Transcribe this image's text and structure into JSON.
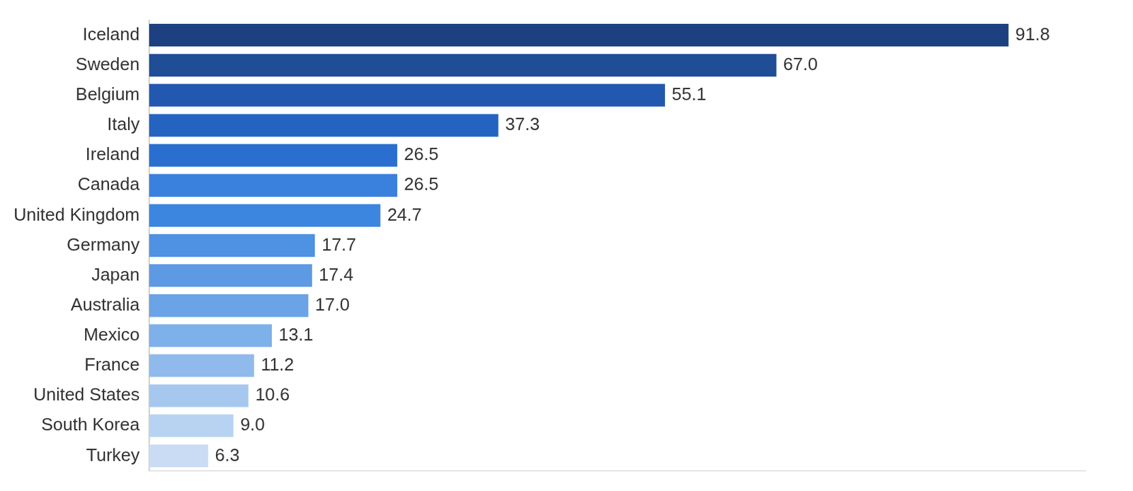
{
  "chart_data": {
    "type": "bar",
    "orientation": "horizontal",
    "categories": [
      "Iceland",
      "Sweden",
      "Belgium",
      "Italy",
      "Ireland",
      "Canada",
      "United Kingdom",
      "Germany",
      "Japan",
      "Australia",
      "Mexico",
      "France",
      "United States",
      "South Korea",
      "Turkey"
    ],
    "values": [
      91.8,
      67.0,
      55.1,
      37.3,
      26.5,
      26.5,
      24.7,
      17.7,
      17.4,
      17.0,
      13.1,
      11.2,
      10.6,
      9.0,
      6.3
    ],
    "value_labels": [
      "91.8",
      "67.0",
      "55.1",
      "37.3",
      "26.5",
      "26.5",
      "24.7",
      "17.7",
      "17.4",
      "17.0",
      "13.1",
      "11.2",
      "10.6",
      "9.0",
      "6.3"
    ],
    "colors": [
      "#1d4080",
      "#1f4d96",
      "#2358b0",
      "#2563c0",
      "#2a6fcf",
      "#3a80dd",
      "#3d86e0",
      "#4f91e2",
      "#5e9ae3",
      "#6aa3e6",
      "#7eb0e9",
      "#8fbaeb",
      "#a6c8ef",
      "#b8d3f2",
      "#c9dcf4"
    ],
    "xlim": [
      0,
      100
    ],
    "grid": false,
    "data_labels": true,
    "tick_labels": "y"
  }
}
